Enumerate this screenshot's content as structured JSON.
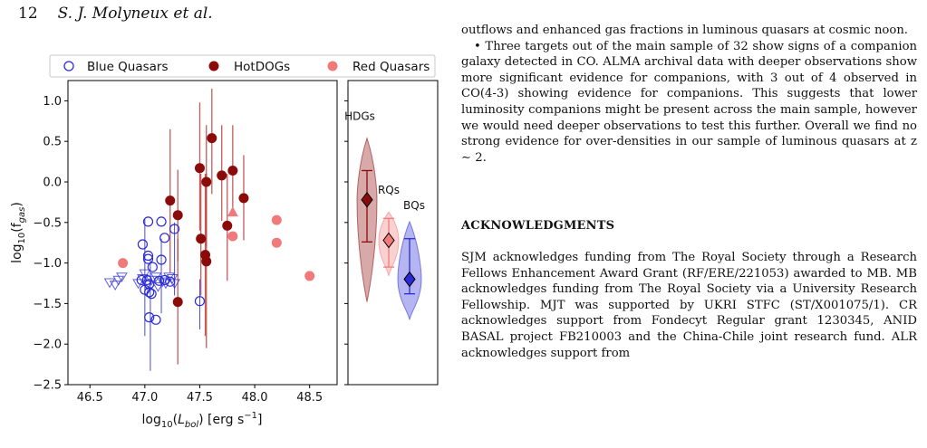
{
  "header": {
    "page_number": "12",
    "authors": "S. J. Molyneux et al."
  },
  "legend": [
    {
      "label": "Blue Quasars",
      "marker": "open-circle",
      "color": "#2b2bd6"
    },
    {
      "label": "HotDOGs",
      "marker": "filled-circle",
      "color": "#8b0a0a"
    },
    {
      "label": "Red Quasars",
      "marker": "filled-circle",
      "color": "#f07a7a"
    }
  ],
  "chart_data": [
    {
      "type": "scatter",
      "xlabel": "log10(Lbol) [erg s−1]",
      "ylabel": "log10(fgas)",
      "xlim": [
        46.3,
        48.75
      ],
      "ylim": [
        -2.5,
        1.25
      ],
      "x_ticks": [
        "46.5",
        "47.0",
        "47.5",
        "48.0",
        "48.5"
      ],
      "y_ticks": [
        "1.0",
        "0.5",
        "0.0",
        "−0.5",
        "−1.0",
        "−1.5",
        "−2.0",
        "−2.5"
      ],
      "grid": false,
      "legend_position": "top",
      "series": [
        {
          "name": "Blue Quasars",
          "marker": "open-circle",
          "color": "#2b2bd6",
          "points": [
            {
              "x": 47.03,
              "y": -0.49
            },
            {
              "x": 47.15,
              "y": -0.49
            },
            {
              "x": 47.27,
              "y": -0.58
            },
            {
              "x": 47.18,
              "y": -0.69
            },
            {
              "x": 46.98,
              "y": -0.77
            },
            {
              "x": 47.03,
              "y": -0.91
            },
            {
              "x": 47.03,
              "y": -0.95
            },
            {
              "x": 47.15,
              "y": -0.96
            },
            {
              "x": 47.07,
              "y": -1.05
            },
            {
              "x": 46.97,
              "y": -1.21
            },
            {
              "x": 47.02,
              "y": -1.21
            },
            {
              "x": 47.04,
              "y": -1.26
            },
            {
              "x": 47.13,
              "y": -1.22
            },
            {
              "x": 47.18,
              "y": -1.21
            },
            {
              "x": 47.23,
              "y": -1.23
            },
            {
              "x": 47.0,
              "y": -1.33
            },
            {
              "x": 47.04,
              "y": -1.36
            },
            {
              "x": 47.06,
              "y": -1.38
            },
            {
              "x": 47.5,
              "y": -1.47
            },
            {
              "x": 47.04,
              "y": -1.67
            },
            {
              "x": 47.1,
              "y": -1.7
            }
          ],
          "upper_limits": [
            {
              "x": 46.68,
              "y": -1.24
            },
            {
              "x": 46.73,
              "y": -1.27
            },
            {
              "x": 46.76,
              "y": -1.21
            },
            {
              "x": 46.79,
              "y": -1.17
            },
            {
              "x": 46.94,
              "y": -1.25
            },
            {
              "x": 46.98,
              "y": -1.19
            },
            {
              "x": 47.0,
              "y": -1.13
            },
            {
              "x": 47.02,
              "y": -1.27
            },
            {
              "x": 47.06,
              "y": -1.21
            },
            {
              "x": 47.1,
              "y": -1.17
            },
            {
              "x": 47.12,
              "y": -1.29
            },
            {
              "x": 47.16,
              "y": -1.23
            },
            {
              "x": 47.19,
              "y": -1.25
            },
            {
              "x": 47.22,
              "y": -1.17
            },
            {
              "x": 47.25,
              "y": -1.19
            },
            {
              "x": 47.27,
              "y": -1.25
            }
          ],
          "errorbars": [
            {
              "x": 47.05,
              "y1": -0.95,
              "y2": -2.33
            },
            {
              "x": 47.0,
              "y1": -0.45,
              "y2": -1.9
            },
            {
              "x": 47.15,
              "y1": -0.7,
              "y2": -1.62
            },
            {
              "x": 47.5,
              "y1": -1.2,
              "y2": -1.82
            },
            {
              "x": 47.27,
              "y1": -0.5,
              "y2": -1.4
            }
          ]
        },
        {
          "name": "HotDOGs",
          "marker": "filled-circle",
          "color": "#8b0a0a",
          "points": [
            {
              "x": 47.23,
              "y": -0.23,
              "ylo": -1.12,
              "yhi": 0.65
            },
            {
              "x": 47.3,
              "y": -0.41,
              "ylo": -0.98,
              "yhi": 0.15
            },
            {
              "x": 47.3,
              "y": -1.48,
              "ylo": -2.25,
              "yhi": -0.7
            },
            {
              "x": 47.5,
              "y": 0.17,
              "ylo": -0.6,
              "yhi": 0.98
            },
            {
              "x": 47.51,
              "y": -0.7,
              "ylo": -1.4,
              "yhi": 0.1
            },
            {
              "x": 47.56,
              "y": 0.0,
              "ylo": -0.8,
              "yhi": 0.7
            },
            {
              "x": 47.55,
              "y": -0.9,
              "ylo": -1.9,
              "yhi": 0.1
            },
            {
              "x": 47.56,
              "y": -0.98,
              "ylo": -2.05,
              "yhi": 0.1
            },
            {
              "x": 47.61,
              "y": 0.54,
              "ylo": -0.15,
              "yhi": 1.15
            },
            {
              "x": 47.7,
              "y": 0.08,
              "ylo": -0.48,
              "yhi": 0.7
            },
            {
              "x": 47.75,
              "y": -0.54,
              "ylo": -1.22,
              "yhi": 0.1
            },
            {
              "x": 47.8,
              "y": 0.14,
              "ylo": -0.35,
              "yhi": 0.7
            },
            {
              "x": 47.9,
              "y": -0.2,
              "ylo": -0.72,
              "yhi": 0.33
            }
          ]
        },
        {
          "name": "Red Quasars",
          "marker": "filled-circle",
          "color": "#f07a7a",
          "points": [
            {
              "x": 46.8,
              "y": -1.0
            },
            {
              "x": 47.8,
              "y": -0.67
            },
            {
              "x": 48.2,
              "y": -0.47
            },
            {
              "x": 48.2,
              "y": -0.75
            },
            {
              "x": 48.5,
              "y": -1.16
            }
          ],
          "upper_limits": [
            {
              "x": 47.8,
              "y": -0.37
            }
          ]
        }
      ]
    },
    {
      "type": "violin",
      "ylim": [
        -2.5,
        1.25
      ],
      "categories": [
        "HDGs",
        "RQs",
        "BQs"
      ],
      "colors": [
        "#8b0a0a",
        "#f07a7a",
        "#2b2bd6"
      ],
      "medians": [
        -0.22,
        -0.72,
        -1.2
      ],
      "ranges": [
        [
          -0.74,
          0.14
        ],
        [
          -1.05,
          -0.45
        ],
        [
          -1.38,
          -0.7
        ]
      ],
      "extents": [
        [
          -1.48,
          0.54
        ],
        [
          -1.16,
          -0.37
        ],
        [
          -1.7,
          -0.49
        ]
      ]
    }
  ],
  "text_column": {
    "paragraph1": "outflows and enhanced gas fractions in luminous quasars at cosmic noon.",
    "bullet": "• Three targets out of the main sample of 32 show signs of a companion galaxy detected in CO. ALMA archival data with deeper observations show more significant evidence for companions, with 3 out of 4 observed in CO(4-3) showing evidence for companions. This suggests that lower luminosity companions might be present across the main sample, however we would need deeper observations to test this further. Overall we find no strong evidence for over-densities in our sample of luminous quasars at z ∼ 2.",
    "heading": "ACKNOWLEDGMENTS",
    "ack": "SJM acknowledges funding from The Royal Society through a Research Fellows Enhancement Award Grant (RF/ERE/221053) awarded to MB. MB acknowledges funding from The Royal Society via a University Research Fellowship. MJT was supported by UKRI STFC (ST/X001075/1). CR acknowledges support from Fondecyt Regular grant 1230345, ANID BASAL project FB210003 and the China-Chile joint research fund. ALR acknowledges support from"
  }
}
